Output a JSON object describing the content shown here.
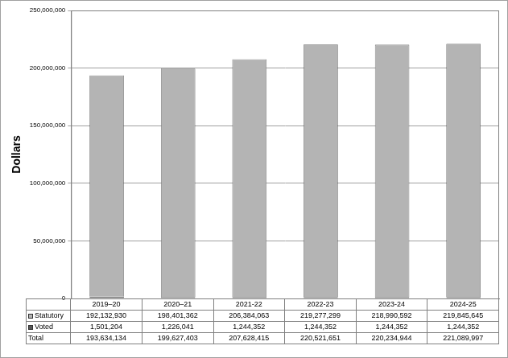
{
  "chart_data": {
    "type": "bar",
    "y_label": "Dollars",
    "categories": [
      "2019–20",
      "2020–21",
      "2021-22",
      "2022-23",
      "2023-24",
      "2024-25"
    ],
    "series": [
      {
        "name": "Statutory",
        "color": "#b4b4b4",
        "values": [
          192132930,
          198401362,
          206384063,
          219277299,
          218990592,
          219845645
        ]
      },
      {
        "name": "Voted",
        "color": "#555555",
        "values": [
          1501204,
          1226041,
          1244352,
          1244352,
          1244352,
          1244352
        ]
      }
    ],
    "totals": {
      "name": "Total",
      "values": [
        193634134,
        199627403,
        207628415,
        220521651,
        220234944,
        221089997
      ]
    },
    "ylim": [
      0,
      250000000
    ],
    "yticks": [
      0,
      {
        "value": 50000000,
        "label": "50,000,000"
      },
      {
        "value": 100000000,
        "label": "100,000,000"
      },
      {
        "value": 150000000,
        "label": "150,000,000"
      },
      {
        "value": 200000000,
        "label": "200,000,000"
      },
      {
        "value": 250000000,
        "label": "250,000,000"
      }
    ],
    "stacked": true,
    "grid": true,
    "tick_labels": "y"
  }
}
